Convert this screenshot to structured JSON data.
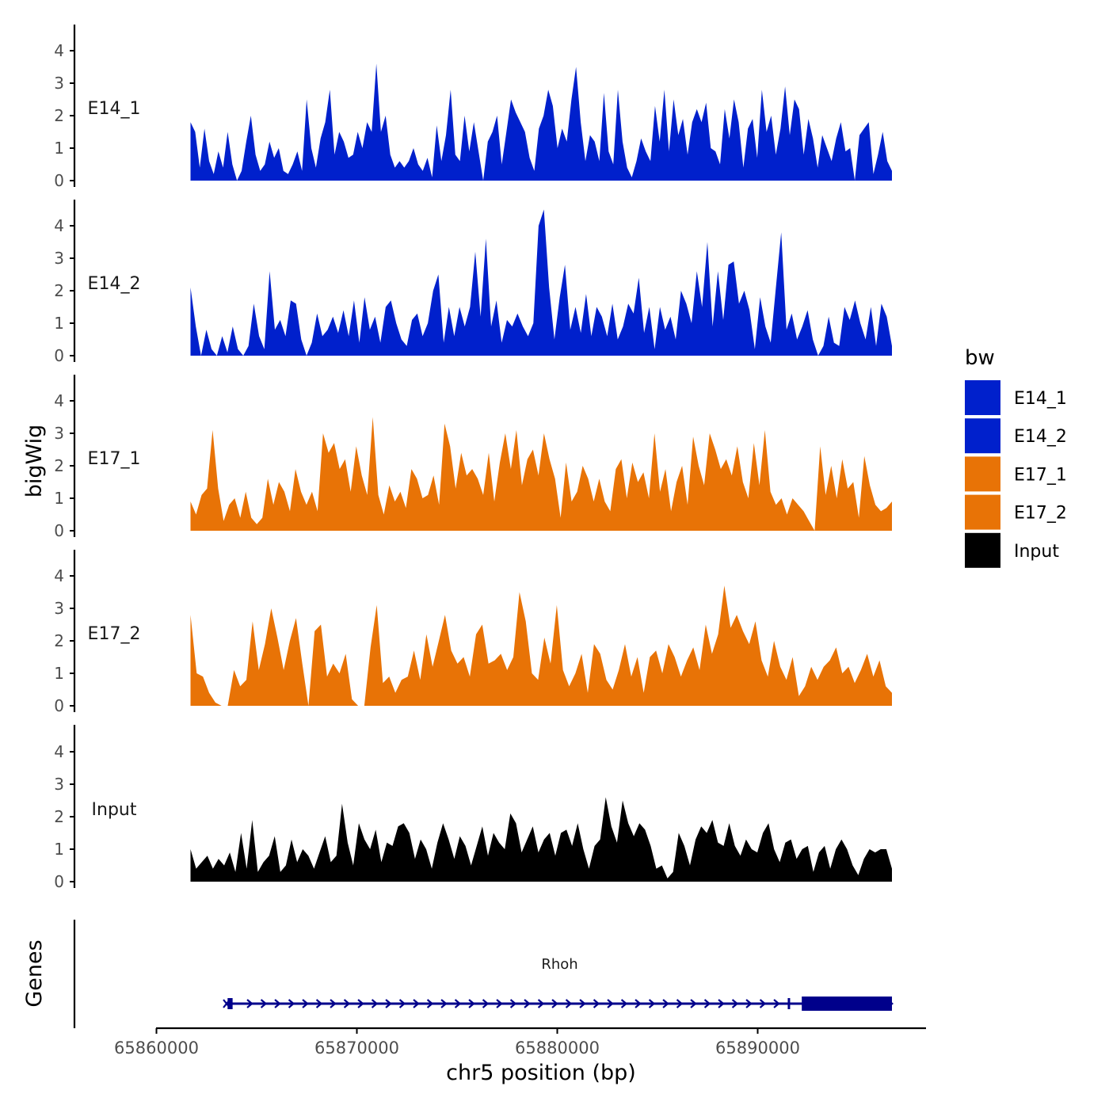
{
  "colors": {
    "E14_1": "#0020CC",
    "E14_2": "#0020CC",
    "E17_1": "#E87306",
    "E17_2": "#E87306",
    "Input": "#000000",
    "gene": "#00008B",
    "axis": "#000000",
    "tick_text": "#4D4D4D"
  },
  "chart_data": {
    "type": "area",
    "ylabel": "bigWig",
    "xlabel": "chr5 position (bp)",
    "ylim": [
      0,
      4.8
    ],
    "y_ticks": [
      "0",
      "1",
      "2",
      "3",
      "4"
    ],
    "x_range": [
      65860000,
      65898000
    ],
    "x_ticks": [
      {
        "value": 65860000,
        "label": "65860000"
      },
      {
        "value": 65870000,
        "label": "65870000"
      },
      {
        "value": 65880000,
        "label": "65880000"
      },
      {
        "value": 65890000,
        "label": "65890000"
      }
    ],
    "track_start": 65861700,
    "track_end": 65896700,
    "legend": {
      "title": "bw",
      "entries": [
        "E14_1",
        "E14_2",
        "E17_1",
        "E17_2",
        "Input"
      ]
    },
    "series": [
      {
        "name": "E14_1",
        "values": [
          1.8,
          1.5,
          0.4,
          1.6,
          0.6,
          0.2,
          0.9,
          0.4,
          1.5,
          0.5,
          0,
          0.3,
          1.2,
          2.0,
          0.8,
          0.3,
          0.5,
          1.2,
          0.7,
          1.0,
          0.3,
          0.2,
          0.5,
          0.9,
          0.3,
          2.5,
          1.0,
          0.4,
          1.3,
          1.8,
          2.8,
          0.8,
          1.5,
          1.2,
          0.7,
          0.8,
          1.5,
          1.0,
          1.8,
          1.5,
          3.6,
          1.5,
          2.0,
          0.8,
          0.4,
          0.6,
          0.4,
          0.6,
          1.0,
          0.5,
          0.3,
          0.7,
          0.1,
          1.7,
          0.6,
          1.4,
          2.8,
          0.8,
          0.6,
          2.0,
          0.9,
          1.8,
          0.9,
          0,
          1.2,
          1.5,
          2.0,
          0.5,
          1.5,
          2.5,
          2.1,
          1.8,
          1.5,
          0.7,
          0.3,
          1.6,
          2.0,
          2.8,
          2.3,
          1.0,
          1.6,
          1.2,
          2.5,
          3.5,
          1.8,
          0.6,
          1.4,
          1.2,
          0.6,
          2.7,
          0.9,
          0.5,
          2.8,
          1.2,
          0.4,
          0.1,
          0.6,
          1.3,
          0.9,
          0.6,
          2.3,
          1.2,
          2.8,
          0.9,
          2.5,
          1.4,
          1.9,
          0.8,
          1.8,
          2.2,
          1.8,
          2.4,
          1.0,
          0.9,
          0.5,
          2.2,
          1.3,
          2.5,
          1.8,
          0.4,
          1.6,
          1.9,
          0.7,
          2.8,
          1.5,
          2.0,
          0.8,
          1.6,
          2.9,
          1.4,
          2.5,
          2.2,
          0.8,
          1.9,
          1.3,
          0.4,
          1.4,
          1.0,
          0.6,
          1.3,
          1.8,
          0.9,
          1.0,
          0,
          1.4,
          1.6,
          1.8,
          0.2,
          0.8,
          1.5,
          0.6,
          0.3
        ]
      },
      {
        "name": "E14_2",
        "values": [
          2.1,
          0.9,
          0,
          0.8,
          0.2,
          0,
          0.6,
          0.1,
          0.9,
          0.2,
          0,
          0.3,
          1.6,
          0.6,
          0.2,
          2.6,
          0.8,
          1.1,
          0.6,
          1.7,
          1.6,
          0.5,
          0,
          0.4,
          1.3,
          0.6,
          0.8,
          1.2,
          0.7,
          1.4,
          0.6,
          1.7,
          0.4,
          1.8,
          0.8,
          1.2,
          0.4,
          1.5,
          1.7,
          1.0,
          0.5,
          0.3,
          1.1,
          1.3,
          0.6,
          1.0,
          2.0,
          2.5,
          0.4,
          1.5,
          0.6,
          1.5,
          0.9,
          1.5,
          3.2,
          1.2,
          3.6,
          0.9,
          1.7,
          0.4,
          1.1,
          0.9,
          1.3,
          0.9,
          0.6,
          1.0,
          4.0,
          4.5,
          2.1,
          0.5,
          1.8,
          2.8,
          0.8,
          1.5,
          0.7,
          1.9,
          0.6,
          1.5,
          1.2,
          0.6,
          1.6,
          0.5,
          0.9,
          1.6,
          1.3,
          2.4,
          0.7,
          1.5,
          0.2,
          1.5,
          0.8,
          1.2,
          0.5,
          2.0,
          1.6,
          1.0,
          2.6,
          1.5,
          3.5,
          0.9,
          2.6,
          1.1,
          2.8,
          2.9,
          1.6,
          2.0,
          1.4,
          0.2,
          1.8,
          0.9,
          0.4,
          2.1,
          3.8,
          0.8,
          1.3,
          0.5,
          0.9,
          1.4,
          0.5,
          0,
          0.3,
          1.2,
          0.4,
          0.3,
          1.5,
          1.1,
          1.7,
          1.0,
          0.5,
          1.5,
          0.3,
          1.6,
          1.2,
          0.3
        ]
      },
      {
        "name": "E17_1",
        "values": [
          0.9,
          0.5,
          1.1,
          1.3,
          3.1,
          1.3,
          0.3,
          0.8,
          1.0,
          0.4,
          1.2,
          0.4,
          0.2,
          0.4,
          1.6,
          0.8,
          1.5,
          1.2,
          0.6,
          1.9,
          1.2,
          0.8,
          1.2,
          0.6,
          3.0,
          2.4,
          2.7,
          1.9,
          2.2,
          1.2,
          2.6,
          1.7,
          1.1,
          3.5,
          1.1,
          0.5,
          1.4,
          0.9,
          1.2,
          0.7,
          1.9,
          1.6,
          1.0,
          1.1,
          1.7,
          0.8,
          3.3,
          2.6,
          1.3,
          2.4,
          1.7,
          1.9,
          1.6,
          1.1,
          2.4,
          0.9,
          2.1,
          3.0,
          1.9,
          3.1,
          1.4,
          2.2,
          2.5,
          1.7,
          3.0,
          2.2,
          1.6,
          0.4,
          2.1,
          0.9,
          1.2,
          2.0,
          1.6,
          0.9,
          1.6,
          0.9,
          0.6,
          1.9,
          2.2,
          1.0,
          2.1,
          1.5,
          1.8,
          1.0,
          3.0,
          1.2,
          1.9,
          0.6,
          1.5,
          2.0,
          0.8,
          2.9,
          2.0,
          1.4,
          3.0,
          2.5,
          1.9,
          2.2,
          1.7,
          2.6,
          1.5,
          1.0,
          2.7,
          1.4,
          3.1,
          1.2,
          0.8,
          1.0,
          0.5,
          1.0,
          0.8,
          0.6,
          0.3,
          0,
          2.6,
          1.1,
          2.0,
          1.0,
          2.2,
          1.3,
          1.5,
          0.4,
          2.3,
          1.4,
          0.8,
          0.6,
          0.7,
          0.9
        ]
      },
      {
        "name": "E17_2",
        "values": [
          2.8,
          1.0,
          0.9,
          0.4,
          0.1,
          0,
          0,
          1.1,
          0.6,
          0.8,
          2.6,
          1.1,
          1.9,
          3.0,
          2.1,
          1.1,
          2.0,
          2.7,
          1.3,
          0,
          2.3,
          2.5,
          0.9,
          1.3,
          1.0,
          1.6,
          0.2,
          0,
          0,
          1.8,
          3.1,
          0.7,
          0.9,
          0.4,
          0.8,
          0.9,
          1.7,
          0.8,
          2.2,
          1.2,
          2.0,
          2.8,
          1.7,
          1.3,
          1.5,
          0.9,
          2.2,
          2.5,
          1.3,
          1.4,
          1.6,
          1.1,
          1.5,
          3.5,
          2.6,
          1.0,
          0.8,
          2.1,
          1.3,
          3.1,
          1.1,
          0.6,
          1.0,
          1.6,
          0.4,
          1.9,
          1.6,
          0.8,
          0.5,
          1.1,
          1.9,
          0.9,
          1.5,
          0.4,
          1.5,
          1.7,
          1.0,
          1.9,
          1.5,
          0.9,
          1.4,
          1.8,
          1.1,
          2.5,
          1.6,
          2.2,
          3.7,
          2.4,
          2.8,
          2.3,
          1.9,
          2.6,
          1.4,
          0.9,
          2.0,
          1.2,
          0.8,
          1.5,
          0.3,
          0.6,
          1.2,
          0.8,
          1.2,
          1.4,
          1.8,
          1.0,
          1.2,
          0.7,
          1.1,
          1.6,
          0.9,
          1.4,
          0.6,
          0.4
        ]
      },
      {
        "name": "Input",
        "values": [
          1.0,
          0.4,
          0.6,
          0.8,
          0.4,
          0.7,
          0.5,
          0.9,
          0.3,
          1.5,
          0.4,
          1.9,
          0.3,
          0.6,
          0.8,
          1.4,
          0.3,
          0.5,
          1.3,
          0.6,
          1.0,
          0.8,
          0.4,
          0.9,
          1.4,
          0.6,
          0.8,
          2.4,
          1.2,
          0.5,
          1.8,
          1.3,
          1.0,
          1.6,
          0.6,
          1.2,
          1.1,
          1.7,
          1.8,
          1.5,
          0.7,
          1.3,
          1.0,
          0.4,
          1.2,
          1.8,
          1.3,
          0.7,
          1.4,
          1.1,
          0.5,
          1.1,
          1.7,
          0.8,
          1.5,
          1.2,
          1.0,
          2.1,
          1.8,
          0.9,
          1.3,
          1.7,
          0.9,
          1.3,
          1.5,
          0.8,
          1.5,
          1.6,
          1.1,
          1.8,
          1.0,
          0.4,
          1.1,
          1.3,
          2.6,
          1.7,
          1.2,
          2.5,
          1.8,
          1.4,
          1.8,
          1.6,
          1.1,
          0.4,
          0.5,
          0.1,
          0.3,
          1.5,
          1.1,
          0.5,
          1.3,
          1.7,
          1.5,
          1.9,
          1.2,
          1.1,
          1.8,
          1.1,
          0.8,
          1.3,
          1.0,
          0.9,
          1.5,
          1.8,
          1.0,
          0.6,
          1.2,
          1.3,
          0.7,
          1.0,
          1.1,
          0.3,
          0.9,
          1.1,
          0.4,
          1.0,
          1.3,
          1.0,
          0.5,
          0.2,
          0.7,
          1.0,
          0.9,
          1.0,
          1.0,
          0.4
        ]
      }
    ],
    "gene_track": {
      "label": "Genes",
      "gene_name": "Rhoh",
      "gene_start": 65863500,
      "gene_end": 65896700,
      "exons": [
        {
          "start": 65863550,
          "end": 65863800,
          "type": "small"
        },
        {
          "start": 65891500,
          "end": 65891580,
          "type": "small"
        },
        {
          "start": 65892200,
          "end": 65896700,
          "type": "large"
        }
      ],
      "strand": "+"
    }
  }
}
